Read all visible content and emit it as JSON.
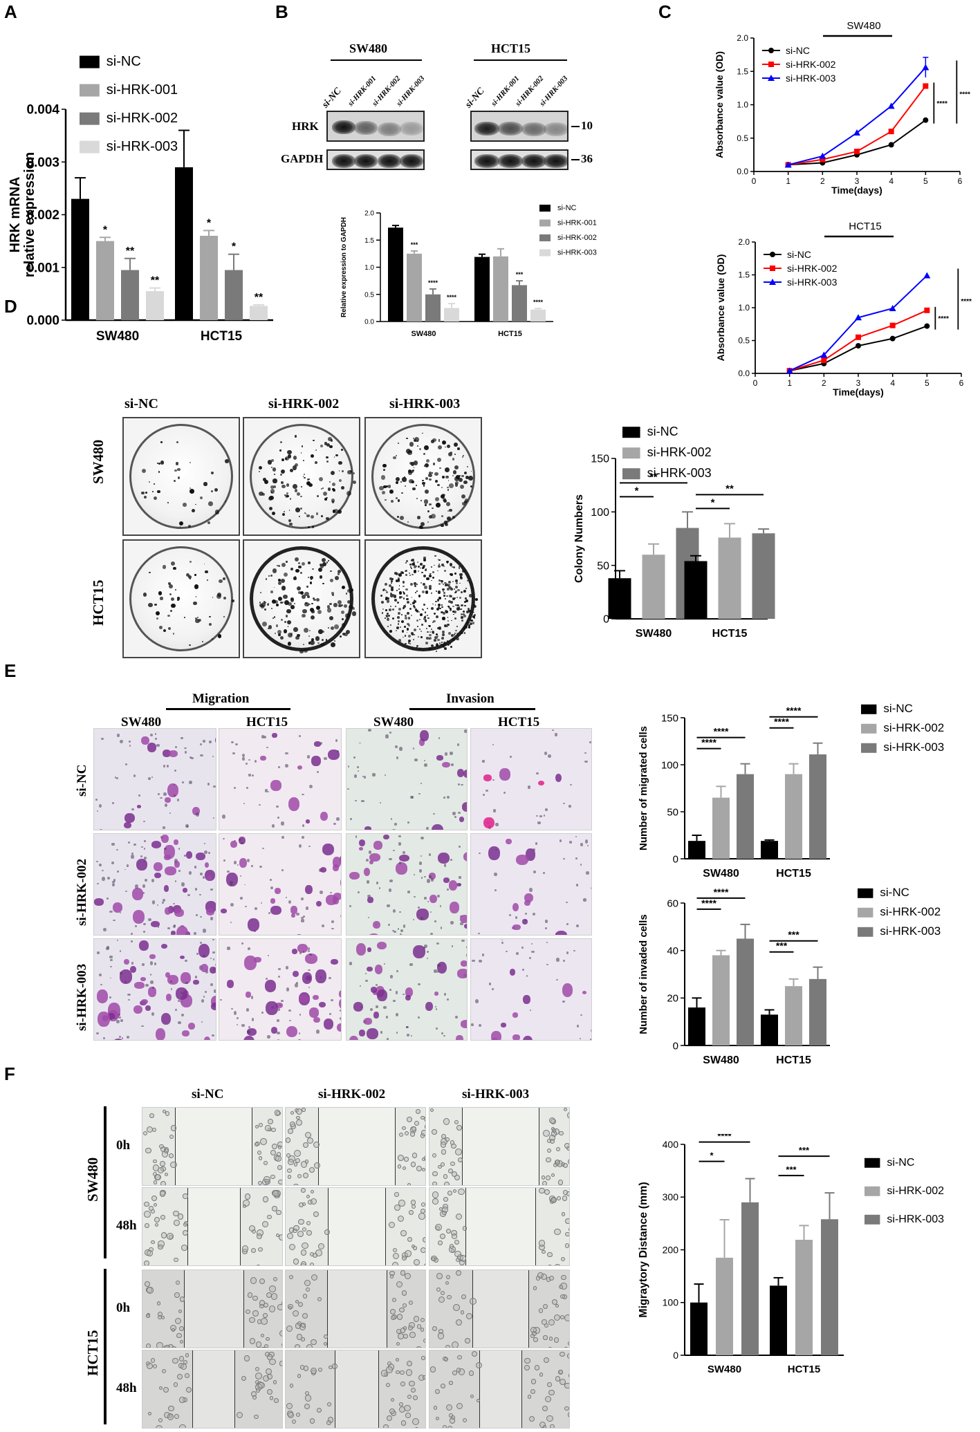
{
  "panels": {
    "A": "A",
    "B": "B",
    "C": "C",
    "D": "D",
    "E": "E",
    "F": "F"
  },
  "colors": {
    "siNC": "#000000",
    "si001": "#a6a6a6",
    "si002": "#7a7a7a",
    "si003": "#d9d9d9",
    "lineNC": "#000000",
    "line002": "#ff0000",
    "line003": "#0000ff"
  },
  "panelB": {
    "group1": "SW480",
    "group2": "HCT15",
    "lanes": [
      "si-NC",
      "si-HRK-001",
      "si-HRK-002",
      "si-HRK-003",
      "si-NC",
      "si-HRK-001",
      "si-HRK-002",
      "si-HRK-003"
    ],
    "rows": [
      "HRK",
      "GAPDH"
    ],
    "markers": [
      "10",
      "36"
    ]
  },
  "panelD": {
    "columns": [
      "si-NC",
      "si-HRK-002",
      "si-HRK-003"
    ],
    "rows": [
      "SW480",
      "HCT15"
    ]
  },
  "panelE": {
    "migration": "Migration",
    "invasion": "Invasion",
    "columns": [
      "SW480",
      "HCT15",
      "SW480",
      "HCT15"
    ],
    "rows": [
      "si-NC",
      "si-HRK-002",
      "si-HRK-003"
    ]
  },
  "panelF": {
    "columns": [
      "si-NC",
      "si-HRK-002",
      "si-HRK-003"
    ],
    "cellLines": [
      "SW480",
      "HCT15"
    ],
    "times": [
      "0h",
      "48h",
      "0h",
      "48h"
    ]
  },
  "chart_data": [
    {
      "id": "A",
      "type": "bar",
      "categories": [
        "SW480",
        "HCT15"
      ],
      "ylabel": "HRK mRNA\nrelative expression",
      "ylim": [
        0,
        0.004
      ],
      "yticks": [
        "0.000",
        "0.001",
        "0.002",
        "0.003",
        "0.004"
      ],
      "legend": "top-left",
      "series": [
        {
          "name": "si-NC",
          "values": [
            0.0023,
            0.0029
          ],
          "err": [
            0.0004,
            0.0007
          ],
          "sig": [
            "",
            ""
          ]
        },
        {
          "name": "si-HRK-001",
          "values": [
            0.0015,
            0.0016
          ],
          "err": [
            7e-05,
            0.0001
          ],
          "sig": [
            "*",
            "*"
          ]
        },
        {
          "name": "si-HRK-002",
          "values": [
            0.00095,
            0.00095
          ],
          "err": [
            0.00022,
            0.0003
          ],
          "sig": [
            "**",
            "*"
          ]
        },
        {
          "name": "si-HRK-003",
          "values": [
            0.00055,
            0.00027
          ],
          "err": [
            6e-05,
            2e-05
          ],
          "sig": [
            "**",
            "**"
          ]
        }
      ]
    },
    {
      "id": "B",
      "type": "bar",
      "categories": [
        "SW480",
        "HCT15"
      ],
      "ylabel": "Relative expression to GAPDH",
      "ylim": [
        0,
        2.0
      ],
      "yticks": [
        "0.0",
        "0.5",
        "1.0",
        "1.5",
        "2.0"
      ],
      "legend": "right",
      "series": [
        {
          "name": "si-NC",
          "values": [
            1.73,
            1.19
          ],
          "err": [
            0.04,
            0.05
          ],
          "sig": [
            "",
            ""
          ]
        },
        {
          "name": "si-HRK-001",
          "values": [
            1.25,
            1.2
          ],
          "err": [
            0.05,
            0.14
          ],
          "sig": [
            "***",
            ""
          ]
        },
        {
          "name": "si-HRK-002",
          "values": [
            0.5,
            0.67
          ],
          "err": [
            0.1,
            0.08
          ],
          "sig": [
            "****",
            "***"
          ]
        },
        {
          "name": "si-HRK-003",
          "values": [
            0.25,
            0.22
          ],
          "err": [
            0.08,
            0.02
          ],
          "sig": [
            "****",
            "****"
          ]
        }
      ]
    },
    {
      "id": "C1",
      "type": "line",
      "title": "SW480",
      "xlabel": "Time(days)",
      "ylabel": "Absorbance value (OD)",
      "xlim": [
        0,
        6
      ],
      "ylim": [
        0,
        2.0
      ],
      "xticks": [
        "0",
        "1",
        "2",
        "3",
        "4",
        "5",
        "6"
      ],
      "yticks": [
        "0.0",
        "0.5",
        "1.0",
        "1.5",
        "2.0"
      ],
      "x": [
        1,
        2,
        3,
        4,
        5
      ],
      "series": [
        {
          "name": "si-NC",
          "values": [
            0.1,
            0.13,
            0.25,
            0.4,
            0.77
          ],
          "marker": "circle"
        },
        {
          "name": "si-HRK-002",
          "values": [
            0.1,
            0.18,
            0.3,
            0.6,
            1.28
          ],
          "marker": "square"
        },
        {
          "name": "si-HRK-003",
          "values": [
            0.1,
            0.23,
            0.58,
            0.98,
            1.56
          ],
          "marker": "triangle",
          "err": [
            0,
            0,
            0,
            0,
            0.15
          ]
        }
      ],
      "sig": [
        "****",
        "****"
      ]
    },
    {
      "id": "C2",
      "type": "line",
      "title": "HCT15",
      "xlabel": "Time(days)",
      "ylabel": "Absorbance value (OD)",
      "xlim": [
        0,
        6
      ],
      "ylim": [
        0,
        2.0
      ],
      "xticks": [
        "0",
        "1",
        "2",
        "3",
        "4",
        "5",
        "6"
      ],
      "yticks": [
        "0.0",
        "0.5",
        "1.0",
        "1.5",
        "2.0"
      ],
      "x": [
        1,
        2,
        3,
        4,
        5
      ],
      "series": [
        {
          "name": "si-NC",
          "values": [
            0.04,
            0.15,
            0.42,
            0.53,
            0.72
          ],
          "marker": "circle"
        },
        {
          "name": "si-HRK-002",
          "values": [
            0.04,
            0.2,
            0.55,
            0.73,
            0.96
          ],
          "marker": "square"
        },
        {
          "name": "si-HRK-003",
          "values": [
            0.04,
            0.28,
            0.85,
            0.99,
            1.49
          ],
          "marker": "triangle"
        }
      ],
      "sig": [
        "****",
        "****"
      ]
    },
    {
      "id": "D",
      "type": "bar",
      "categories": [
        "SW480",
        "HCT15"
      ],
      "ylabel": "Colony Numbers",
      "ylim": [
        0,
        150
      ],
      "yticks": [
        "0",
        "50",
        "100",
        "150"
      ],
      "legend": "top",
      "series": [
        {
          "name": "si-NC",
          "values": [
            38,
            54
          ],
          "err": [
            7,
            5
          ]
        },
        {
          "name": "si-HRK-002",
          "values": [
            60,
            76
          ],
          "err": [
            10,
            13
          ]
        },
        {
          "name": "si-HRK-003",
          "values": [
            85,
            80
          ],
          "err": [
            15,
            4
          ]
        }
      ],
      "brackets": [
        [
          "*",
          "**"
        ],
        [
          "*",
          "**"
        ]
      ]
    },
    {
      "id": "E1",
      "type": "bar",
      "categories": [
        "SW480",
        "HCT15"
      ],
      "ylabel": "Number of migrated cells",
      "ylim": [
        0,
        150
      ],
      "yticks": [
        "0",
        "50",
        "100",
        "150"
      ],
      "legend": "right",
      "series": [
        {
          "name": "si-NC",
          "values": [
            19,
            19
          ],
          "err": [
            6,
            1
          ]
        },
        {
          "name": "si-HRK-002",
          "values": [
            65,
            90
          ],
          "err": [
            12,
            11
          ]
        },
        {
          "name": "si-HRK-003",
          "values": [
            90,
            111
          ],
          "err": [
            11,
            12
          ]
        }
      ],
      "brackets": [
        [
          "****",
          "****"
        ],
        [
          "****",
          "****"
        ]
      ]
    },
    {
      "id": "E2",
      "type": "bar",
      "categories": [
        "SW480",
        "HCT15"
      ],
      "ylabel": "Number of invaded cells",
      "ylim": [
        0,
        60
      ],
      "yticks": [
        "0",
        "20",
        "40",
        "60"
      ],
      "legend": "right",
      "series": [
        {
          "name": "si-NC",
          "values": [
            16,
            13
          ],
          "err": [
            4,
            2
          ]
        },
        {
          "name": "si-HRK-002",
          "values": [
            38,
            25
          ],
          "err": [
            2,
            3
          ]
        },
        {
          "name": "si-HRK-003",
          "values": [
            45,
            28
          ],
          "err": [
            6,
            5
          ]
        }
      ],
      "brackets": [
        [
          "****",
          "****"
        ],
        [
          "***",
          "***"
        ]
      ]
    },
    {
      "id": "F",
      "type": "bar",
      "categories": [
        "SW480",
        "HCT15"
      ],
      "ylabel": "Migraytory Distance (mm)",
      "ylim": [
        0,
        400
      ],
      "yticks": [
        "0",
        "100",
        "200",
        "300",
        "400"
      ],
      "legend": "right",
      "series": [
        {
          "name": "si-NC",
          "values": [
            100,
            132
          ],
          "err": [
            35,
            15
          ]
        },
        {
          "name": "si-HRK-002",
          "values": [
            185,
            219
          ],
          "err": [
            72,
            27
          ]
        },
        {
          "name": "si-HRK-003",
          "values": [
            290,
            258
          ],
          "err": [
            45,
            50
          ]
        }
      ],
      "brackets": [
        [
          "*",
          "****"
        ],
        [
          "***",
          "***"
        ]
      ]
    }
  ]
}
